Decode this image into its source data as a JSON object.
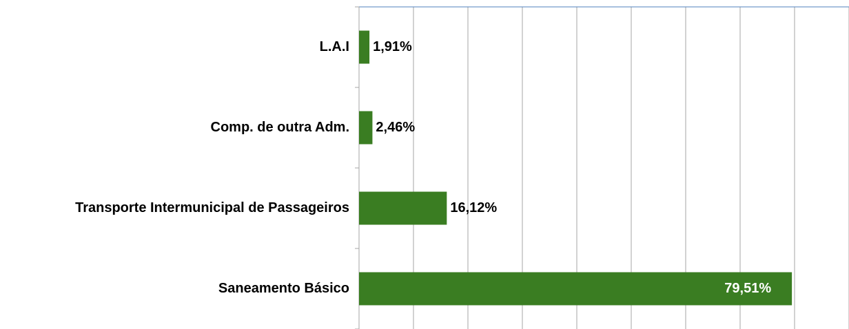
{
  "chart_data": {
    "type": "barh",
    "categories": [
      "L.A.I",
      "Comp. de outra Adm.",
      "Transporte Intermunicipal de Passageiros",
      "Saneamento Básico"
    ],
    "values": [
      1.91,
      2.46,
      16.12,
      79.51
    ],
    "value_labels": [
      "1,91%",
      "2,46%",
      "16,12%",
      "79,51%"
    ],
    "color": "#3a7d22",
    "xlim": [
      0,
      90
    ],
    "xticks": [
      0,
      10,
      20,
      30,
      40,
      50,
      60,
      70,
      80,
      90
    ],
    "grid": true
  }
}
